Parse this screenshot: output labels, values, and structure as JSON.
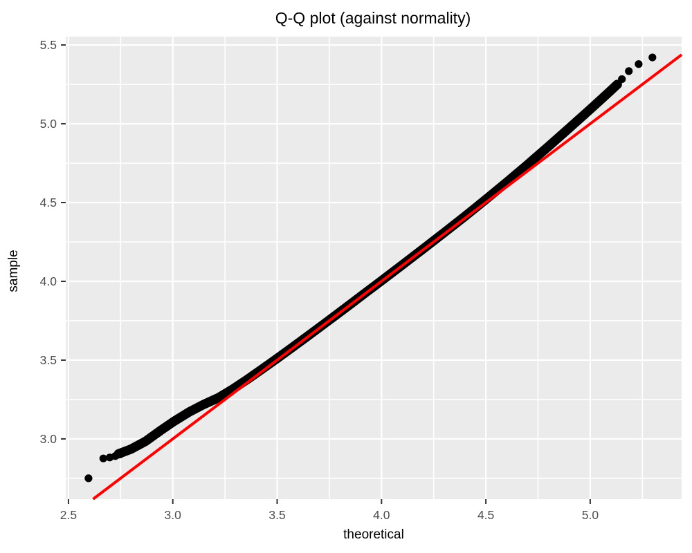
{
  "figure": {
    "background": "#FFFFFF"
  },
  "chart_data": {
    "type": "scatter",
    "title": "Q-Q plot (against normality)",
    "xlabel": "theoretical",
    "ylabel": "sample",
    "xlim": [
      2.487,
      5.438
    ],
    "ylim": [
      2.618,
      5.553
    ],
    "x_ticks": [
      2.5,
      3.0,
      3.5,
      4.0,
      4.5,
      5.0
    ],
    "x_tick_labels": [
      "2.5",
      "3.0",
      "3.5",
      "4.0",
      "4.5",
      "5.0"
    ],
    "y_ticks": [
      3.0,
      3.5,
      4.0,
      4.5,
      5.0,
      5.5
    ],
    "y_tick_labels": [
      "3.0",
      "3.5",
      "4.0",
      "4.5",
      "5.0",
      "5.5"
    ],
    "x_minor_gridlines": [
      2.75,
      3.25,
      3.75,
      4.25,
      4.75,
      5.25
    ],
    "y_minor_gridlines": [
      2.75,
      3.25,
      3.75,
      4.25,
      4.75,
      5.25
    ],
    "grid": "on",
    "legend_position": "none",
    "panel_bg": "#EBEBEB",
    "grid_color": "#FFFFFF",
    "tick_mark_color": "#333333",
    "point_color": "#000000",
    "reference_line": {
      "slope": 1,
      "intercept": 0,
      "color": "#FF0000"
    },
    "qq_band_points": [
      [
        2.74,
        2.905
      ],
      [
        2.8,
        2.935
      ],
      [
        2.87,
        2.985
      ],
      [
        2.94,
        3.052
      ],
      [
        3.01,
        3.115
      ],
      [
        3.08,
        3.172
      ],
      [
        3.15,
        3.22
      ],
      [
        3.22,
        3.262
      ],
      [
        3.29,
        3.318
      ],
      [
        3.36,
        3.38
      ],
      [
        3.43,
        3.445
      ],
      [
        3.5,
        3.511
      ],
      [
        3.57,
        3.578
      ],
      [
        3.64,
        3.646
      ],
      [
        3.71,
        3.715
      ],
      [
        3.78,
        3.784
      ],
      [
        3.85,
        3.854
      ],
      [
        3.92,
        3.924
      ],
      [
        4.0,
        4.004
      ],
      [
        4.1,
        4.105
      ],
      [
        4.2,
        4.206
      ],
      [
        4.3,
        4.309
      ],
      [
        4.4,
        4.413
      ],
      [
        4.5,
        4.52
      ],
      [
        4.6,
        4.629
      ],
      [
        4.7,
        4.741
      ],
      [
        4.8,
        4.856
      ],
      [
        4.9,
        4.973
      ],
      [
        5.0,
        5.092
      ],
      [
        5.05,
        5.152
      ],
      [
        5.1,
        5.213
      ],
      [
        5.13,
        5.25
      ]
    ],
    "low_tail_points": [
      [
        2.596,
        2.75
      ],
      [
        2.667,
        2.876
      ],
      [
        2.698,
        2.882
      ],
      [
        2.724,
        2.891
      ],
      [
        2.748,
        2.902
      ]
    ],
    "high_tail_points": [
      [
        5.152,
        5.283
      ],
      [
        5.185,
        5.334
      ],
      [
        5.232,
        5.379
      ],
      [
        5.298,
        5.421
      ]
    ]
  }
}
